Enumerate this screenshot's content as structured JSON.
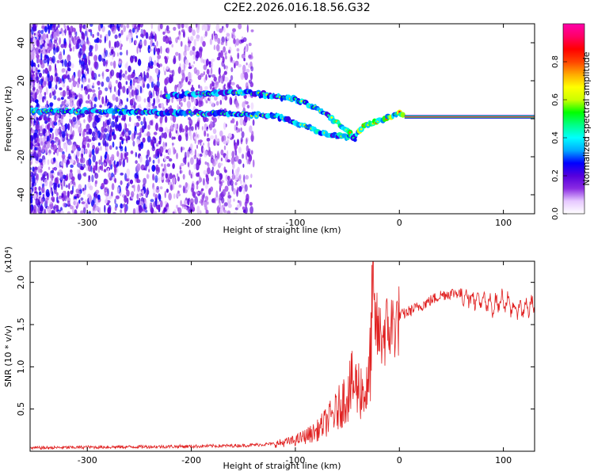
{
  "title": "C2E2.2026.016.18.56.G32",
  "chart_data": [
    {
      "type": "heatmap",
      "name": "spectrogram",
      "xlabel": "Height of straight line (km)",
      "ylabel": "Frequency (Hz)",
      "xlim": [
        -355,
        130
      ],
      "ylim": [
        -50,
        50
      ],
      "xticks": [
        -300,
        -200,
        -100,
        0,
        100
      ],
      "yticks": [
        -40,
        -20,
        0,
        20,
        40
      ],
      "colorbar": {
        "label": "Normalized spectral amplitude",
        "range": [
          0,
          1
        ],
        "ticks": [
          0.0,
          0.2,
          0.4,
          0.6,
          0.8
        ],
        "colors": [
          "#ffffff",
          "#e6c8ff",
          "#8a2be2",
          "#5500dd",
          "#0000ff",
          "#00aaff",
          "#00ffff",
          "#00ff88",
          "#00ff00",
          "#ccff00",
          "#ffff00",
          "#ffaa00",
          "#ff4400",
          "#ff0000",
          "#ff0066",
          "#ff00aa"
        ]
      },
      "tracks": [
        {
          "name": "main-tone",
          "points": [
            [
              -355,
              4
            ],
            [
              -300,
              4
            ],
            [
              -240,
              3.5
            ],
            [
              -200,
              3
            ],
            [
              -150,
              2.5
            ],
            [
              -120,
              1.5
            ],
            [
              -100,
              -2
            ],
            [
              -85,
              -5
            ],
            [
              -70,
              -8
            ],
            [
              -55,
              -9
            ],
            [
              -45,
              -10
            ],
            [
              -35,
              -4
            ],
            [
              -20,
              -1
            ],
            [
              -10,
              1
            ],
            [
              0,
              3
            ],
            [
              5,
              1
            ],
            [
              130,
              1
            ]
          ]
        },
        {
          "name": "upper-tone",
          "points": [
            [
              -225,
              12
            ],
            [
              -200,
              13
            ],
            [
              -150,
              14
            ],
            [
              -120,
              12
            ],
            [
              -100,
              10
            ],
            [
              -80,
              6
            ],
            [
              -65,
              0
            ],
            [
              -50,
              -6
            ],
            [
              -42,
              -11
            ]
          ]
        }
      ],
      "flat_line": {
        "from": 5,
        "to": 130,
        "value": 1
      }
    },
    {
      "type": "line",
      "name": "snr",
      "xlabel": "Height of straight line (km)",
      "ylabel": "SNR (10 * v/v)",
      "multiplier": "(x10⁴)",
      "xlim": [
        -355,
        130
      ],
      "ylim": [
        0,
        2.25
      ],
      "xticks": [
        -300,
        -200,
        -100,
        0,
        100
      ],
      "yticks": [
        0.5,
        1.0,
        1.5,
        2.0
      ],
      "color": "#e02020",
      "envelope": [
        [
          -355,
          0.03
        ],
        [
          -300,
          0.04
        ],
        [
          -200,
          0.05
        ],
        [
          -150,
          0.06
        ],
        [
          -120,
          0.08
        ],
        [
          -100,
          0.12
        ],
        [
          -80,
          0.22
        ],
        [
          -60,
          0.45
        ],
        [
          -45,
          0.75
        ],
        [
          -30,
          0.65
        ],
        [
          -25,
          1.7
        ],
        [
          -20,
          1.4
        ],
        [
          -10,
          1.5
        ],
        [
          0,
          1.6
        ],
        [
          20,
          1.72
        ],
        [
          40,
          1.85
        ],
        [
          55,
          1.88
        ],
        [
          70,
          1.82
        ],
        [
          90,
          1.72
        ],
        [
          100,
          1.8
        ],
        [
          110,
          1.68
        ],
        [
          130,
          1.72
        ]
      ]
    }
  ]
}
